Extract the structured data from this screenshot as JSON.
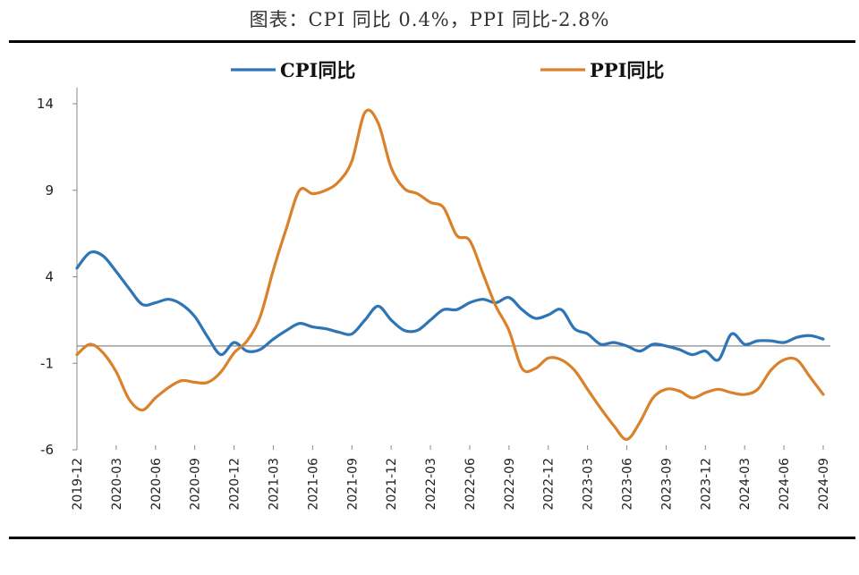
{
  "title": "图表：CPI 同比 0.4%，PPI 同比-2.8%",
  "chart_data": {
    "type": "line",
    "title": "图表：CPI 同比 0.4%，PPI 同比-2.8%",
    "xlabel": "",
    "ylabel": "",
    "ylim": [
      -6,
      14
    ],
    "yticks": [
      14,
      9,
      4,
      -1,
      -6
    ],
    "xtick_labels": [
      "2019-12",
      "2020-03",
      "2020-06",
      "2020-09",
      "2020-12",
      "2021-03",
      "2021-06",
      "2021-09",
      "2021-12",
      "2022-03",
      "2022-06",
      "2022-09",
      "2022-12",
      "2023-03",
      "2023-06",
      "2023-09",
      "2023-12",
      "2024-03",
      "2024-06",
      "2024-09"
    ],
    "x": [
      "2019-12",
      "2020-01",
      "2020-02",
      "2020-03",
      "2020-04",
      "2020-05",
      "2020-06",
      "2020-07",
      "2020-08",
      "2020-09",
      "2020-10",
      "2020-11",
      "2020-12",
      "2021-01",
      "2021-02",
      "2021-03",
      "2021-04",
      "2021-05",
      "2021-06",
      "2021-07",
      "2021-08",
      "2021-09",
      "2021-10",
      "2021-11",
      "2021-12",
      "2022-01",
      "2022-02",
      "2022-03",
      "2022-04",
      "2022-05",
      "2022-06",
      "2022-07",
      "2022-08",
      "2022-09",
      "2022-10",
      "2022-11",
      "2022-12",
      "2023-01",
      "2023-02",
      "2023-03",
      "2023-04",
      "2023-05",
      "2023-06",
      "2023-07",
      "2023-08",
      "2023-09",
      "2023-10",
      "2023-11",
      "2023-12",
      "2024-01",
      "2024-02",
      "2024-03",
      "2024-04",
      "2024-05",
      "2024-06",
      "2024-07",
      "2024-08",
      "2024-09"
    ],
    "legend_position": "top",
    "grid": false,
    "series": [
      {
        "name": "CPI同比",
        "color": "#2E75B6",
        "values": [
          4.5,
          5.4,
          5.2,
          4.3,
          3.3,
          2.4,
          2.5,
          2.7,
          2.4,
          1.7,
          0.5,
          -0.5,
          0.2,
          -0.3,
          -0.2,
          0.4,
          0.9,
          1.3,
          1.1,
          1.0,
          0.8,
          0.7,
          1.5,
          2.3,
          1.5,
          0.9,
          0.9,
          1.5,
          2.1,
          2.1,
          2.5,
          2.7,
          2.5,
          2.8,
          2.1,
          1.6,
          1.8,
          2.1,
          1.0,
          0.7,
          0.1,
          0.2,
          0.0,
          -0.3,
          0.1,
          0.0,
          -0.2,
          -0.5,
          -0.3,
          -0.8,
          0.7,
          0.1,
          0.3,
          0.3,
          0.2,
          0.5,
          0.6,
          0.4
        ]
      },
      {
        "name": "PPI同比",
        "color": "#D9822B",
        "values": [
          -0.5,
          0.1,
          -0.4,
          -1.5,
          -3.1,
          -3.7,
          -3.0,
          -2.4,
          -2.0,
          -2.1,
          -2.1,
          -1.5,
          -0.4,
          0.3,
          1.7,
          4.4,
          6.8,
          9.0,
          8.8,
          9.0,
          9.5,
          10.7,
          13.5,
          12.9,
          10.3,
          9.1,
          8.8,
          8.3,
          8.0,
          6.4,
          6.1,
          4.2,
          2.3,
          0.9,
          -1.3,
          -1.3,
          -0.7,
          -0.8,
          -1.4,
          -2.5,
          -3.6,
          -4.6,
          -5.4,
          -4.4,
          -3.0,
          -2.5,
          -2.6,
          -3.0,
          -2.7,
          -2.5,
          -2.7,
          -2.8,
          -2.5,
          -1.4,
          -0.8,
          -0.8,
          -1.8,
          -2.8
        ]
      }
    ]
  }
}
